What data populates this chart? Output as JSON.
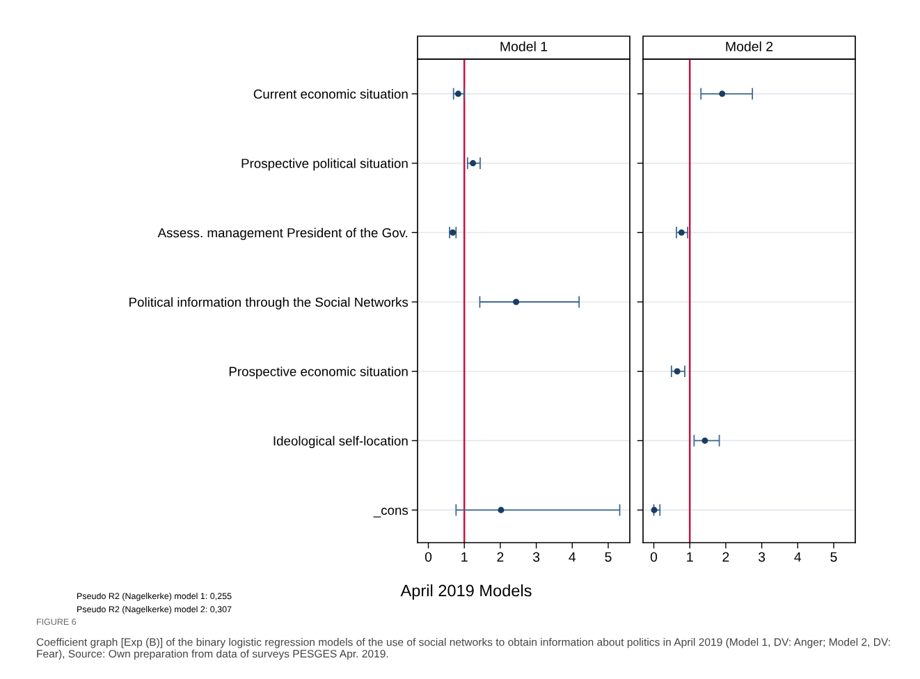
{
  "chart_data": [
    {
      "type": "scatter",
      "orientation": "horizontal",
      "title": "Model 1",
      "xlabel": "April 2019 Models",
      "categories": [
        "Current economic situation",
        "Prospective political situation",
        "Assess. management President of the Gov.",
        "Political information through the Social Networks",
        "Prospective economic situation",
        "Ideological self-location",
        "_cons"
      ],
      "values": [
        0.83,
        1.24,
        0.68,
        2.44,
        null,
        null,
        2.02
      ],
      "errors": [
        [
          0.7,
          0.99
        ],
        [
          1.09,
          1.44
        ],
        [
          0.59,
          0.77
        ],
        [
          1.43,
          4.19
        ],
        null,
        null,
        [
          0.77,
          5.32
        ]
      ],
      "color": "#1b3d63",
      "marker": "circle",
      "xlim": [
        -0.3,
        5.6
      ],
      "xticks": [
        0,
        1,
        2,
        3,
        4,
        5
      ],
      "grid": "y",
      "ref_lines": [
        {
          "axis": "x",
          "value": 1,
          "color": "#c8103e"
        }
      ],
      "annotations": [
        "Pseudo R2 (Nagelkerke) model 1: 0,255",
        "Pseudo R2 (Nagelkerke) model 2: 0,307",
        "FIGURE 6",
        "Coefficient graph [Exp (B)] of the binary logistic regression models of the use of social networks to obtain information about politics in April 2019 (Model 1, DV: Anger; Model 2, DV: Fear), Source: Own preparation from data of surveys PESGES Apr. 2019."
      ]
    },
    {
      "type": "scatter",
      "orientation": "horizontal",
      "title": "Model 2",
      "categories": [
        null,
        null,
        null,
        null,
        null,
        null,
        null
      ],
      "values": [
        1.9,
        null,
        0.77,
        null,
        0.65,
        1.42,
        0.01
      ],
      "errors": [
        [
          1.31,
          2.74
        ],
        null,
        [
          0.63,
          0.94
        ],
        null,
        [
          0.49,
          0.86
        ],
        [
          1.12,
          1.82
        ],
        [
          0.0,
          0.17
        ]
      ],
      "color": "#1b3d63",
      "marker": "circle",
      "xlim": [
        -0.3,
        5.6
      ],
      "xticks": [
        0,
        1,
        2,
        3,
        4,
        5
      ],
      "grid": "y",
      "tick_labels": "x",
      "ref_lines": [
        {
          "axis": "x",
          "value": 1,
          "color": "#c8103e"
        }
      ]
    }
  ]
}
